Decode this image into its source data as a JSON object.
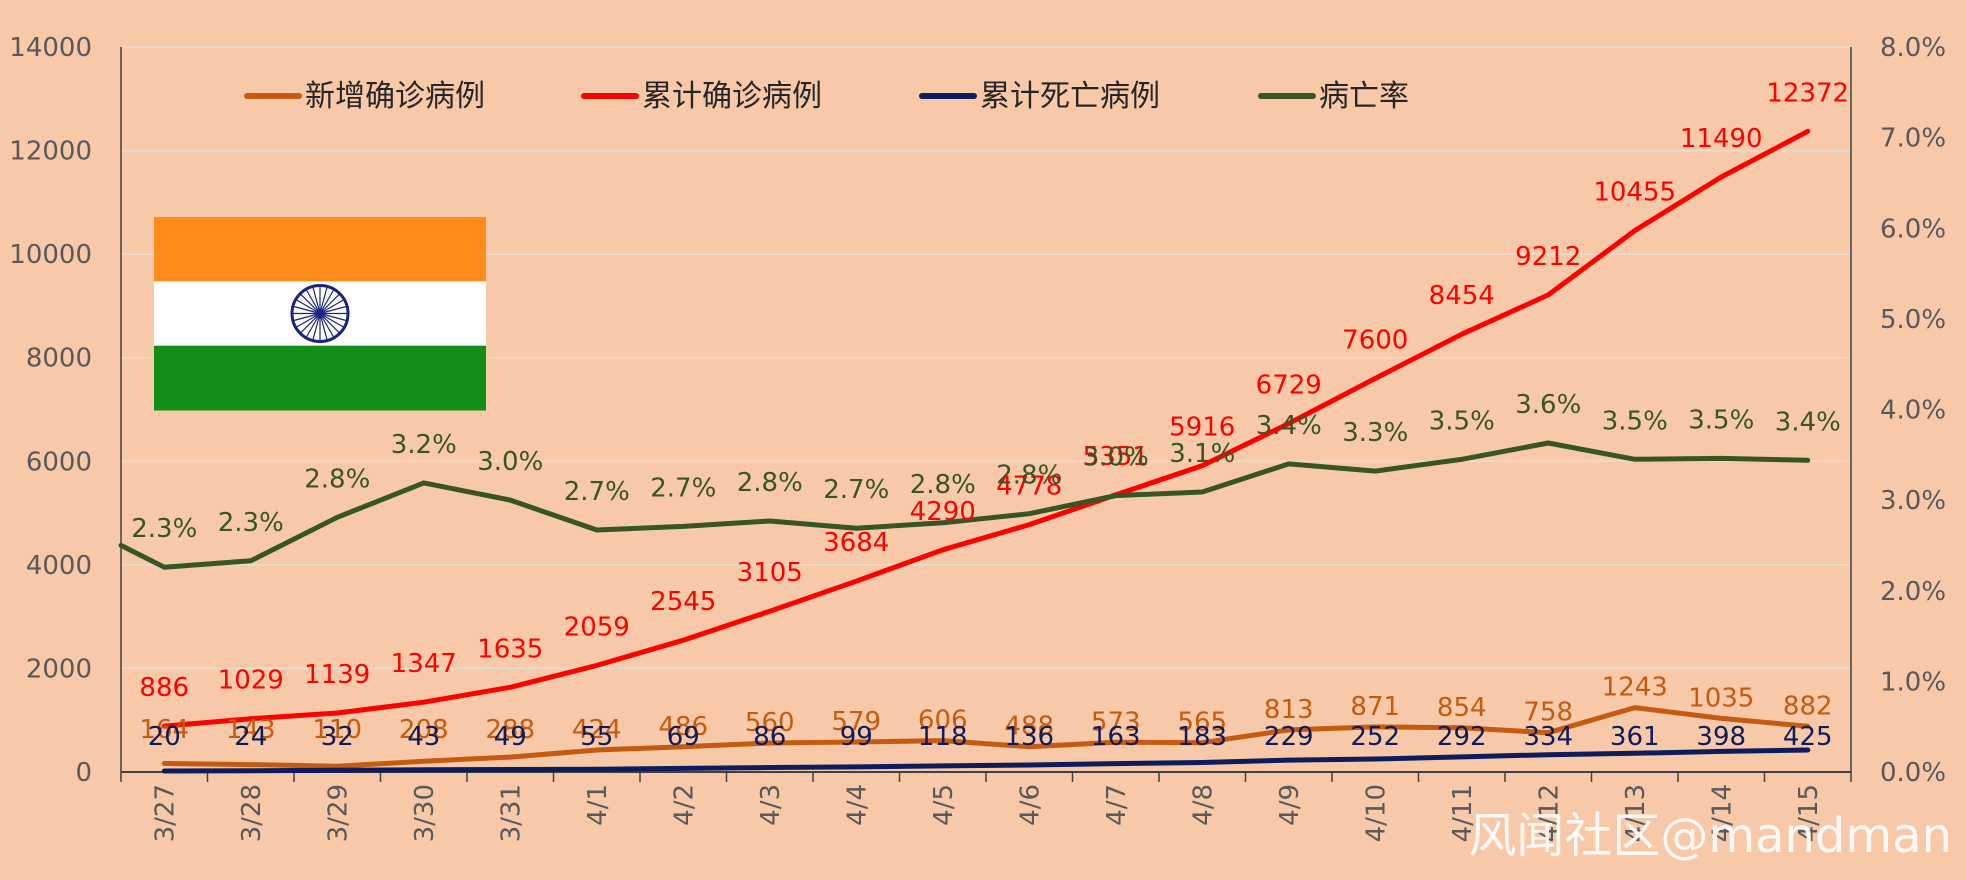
{
  "chart_data": {
    "type": "line",
    "categories": [
      "3/27",
      "3/28",
      "3/29",
      "3/30",
      "3/31",
      "4/1",
      "4/2",
      "4/3",
      "4/4",
      "4/5",
      "4/6",
      "4/7",
      "4/8",
      "4/9",
      "4/10",
      "4/11",
      "4/12",
      "4/13",
      "4/14",
      "4/15"
    ],
    "y_left": {
      "min": 0,
      "max": 14000,
      "ticks": [
        "0",
        "2000",
        "4000",
        "6000",
        "8000",
        "10000",
        "12000",
        "14000"
      ]
    },
    "y_right": {
      "min": 0,
      "max": 0.08,
      "ticks": [
        "0.0%",
        "1.0%",
        "2.0%",
        "3.0%",
        "4.0%",
        "5.0%",
        "6.0%",
        "7.0%",
        "8.0%"
      ]
    },
    "grid": true,
    "legend_position": "top",
    "series": [
      {
        "name": "新增确诊病例",
        "color": "#c55a11",
        "axis": "left",
        "values": [
          164,
          143,
          110,
          208,
          288,
          424,
          486,
          560,
          579,
          606,
          488,
          573,
          565,
          813,
          871,
          854,
          758,
          1243,
          1035,
          882
        ],
        "labels": [
          "164",
          "143",
          "110",
          "208",
          "288",
          "424",
          "486",
          "560",
          "579",
          "606",
          "488",
          "573",
          "565",
          "813",
          "871",
          "854",
          "758",
          "1243",
          "1035",
          "882"
        ]
      },
      {
        "name": "累计确诊病例",
        "color": "#ff0000",
        "axis": "left",
        "values": [
          886,
          1029,
          1139,
          1347,
          1635,
          2059,
          2545,
          3105,
          3684,
          4290,
          4778,
          5351,
          5916,
          6729,
          7600,
          8454,
          9212,
          10455,
          11490,
          12372
        ],
        "labels": [
          "886",
          "1029",
          "1139",
          "1347",
          "1635",
          "2059",
          "2545",
          "3105",
          "3684",
          "4290",
          "4778",
          "5351",
          "5916",
          "6729",
          "7600",
          "8454",
          "9212",
          "10455",
          "11490",
          "12372"
        ]
      },
      {
        "name": "累计死亡病例",
        "color": "#0c1c5c",
        "axis": "left",
        "values": [
          20,
          24,
          32,
          43,
          49,
          55,
          69,
          86,
          99,
          118,
          136,
          163,
          183,
          229,
          252,
          292,
          334,
          361,
          398,
          425
        ],
        "labels": [
          "20",
          "24",
          "32",
          "43",
          "49",
          "55",
          "69",
          "86",
          "99",
          "118",
          "136",
          "163",
          "183",
          "229",
          "252",
          "292",
          "334",
          "361",
          "398",
          "425"
        ]
      },
      {
        "name": "病亡率",
        "color": "#375623",
        "axis": "right",
        "lead_in": 0.025,
        "values": [
          0.0226,
          0.0233,
          0.0281,
          0.0319,
          0.03,
          0.0267,
          0.0271,
          0.0277,
          0.0269,
          0.0275,
          0.0285,
          0.0305,
          0.0309,
          0.034,
          0.0332,
          0.0345,
          0.0363,
          0.0345,
          0.0346,
          0.0344
        ],
        "labels": [
          "2.3%",
          "2.3%",
          "2.8%",
          "3.2%",
          "3.0%",
          "2.7%",
          "2.7%",
          "2.8%",
          "2.7%",
          "2.8%",
          "2.8%",
          "3.0%",
          "3.1%",
          "3.4%",
          "3.3%",
          "3.5%",
          "3.6%",
          "3.5%",
          "3.5%",
          "3.4%"
        ]
      }
    ],
    "flag": {
      "colors": [
        "#ff8c1a",
        "#ffffff",
        "#138f18"
      ],
      "wheel_color": "#1a237e",
      "spokes": 24
    },
    "watermark": "风闻社区@mandman"
  }
}
